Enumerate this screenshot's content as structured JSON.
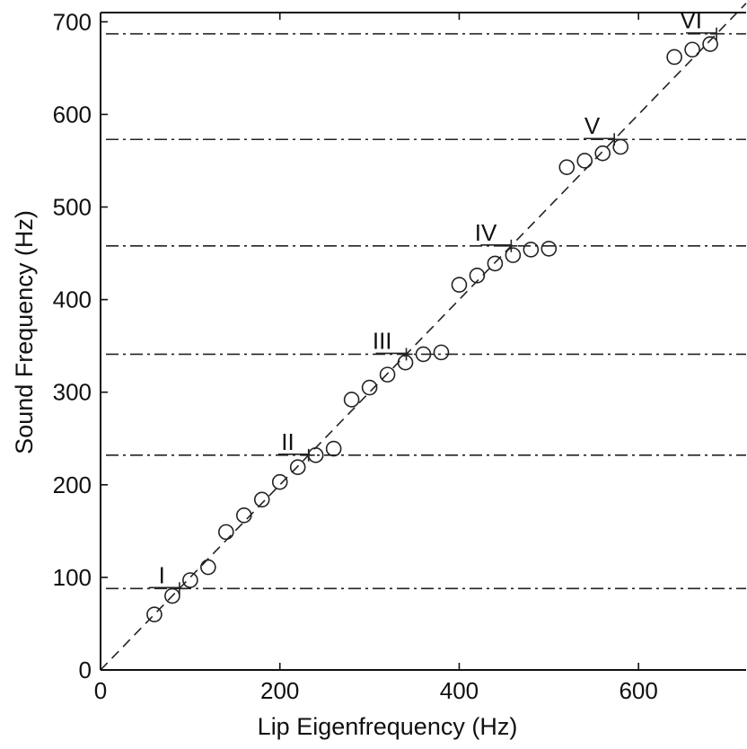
{
  "chart_data": {
    "type": "scatter",
    "title": "",
    "xlabel": "Lip Eigenfrequency (Hz)",
    "ylabel": "Sound Frequency (Hz)",
    "xlim": [
      0,
      720
    ],
    "ylim": [
      0,
      710
    ],
    "x_ticks": [
      0,
      200,
      400,
      600
    ],
    "y_ticks": [
      0,
      100,
      200,
      300,
      400,
      500,
      600,
      700
    ],
    "grid": false,
    "series": [
      {
        "marker": "circle",
        "points": [
          [
            60,
            60
          ],
          [
            80,
            80
          ],
          [
            100,
            97
          ],
          [
            120,
            111
          ],
          [
            140,
            149
          ],
          [
            160,
            167
          ],
          [
            180,
            184
          ],
          [
            200,
            203
          ],
          [
            220,
            219
          ],
          [
            240,
            232
          ],
          [
            260,
            239
          ],
          [
            280,
            292
          ],
          [
            300,
            305
          ],
          [
            320,
            319
          ],
          [
            340,
            332
          ],
          [
            360,
            341
          ],
          [
            380,
            343
          ],
          [
            400,
            416
          ],
          [
            420,
            426
          ],
          [
            440,
            439
          ],
          [
            460,
            448
          ],
          [
            480,
            454
          ],
          [
            500,
            455
          ],
          [
            520,
            543
          ],
          [
            540,
            550
          ],
          [
            560,
            558
          ],
          [
            580,
            565
          ],
          [
            640,
            662
          ],
          [
            660,
            670
          ],
          [
            680,
            676
          ]
        ]
      }
    ],
    "reference_line": {
      "style": "dashed",
      "x": [
        0,
        720
      ],
      "y": [
        0,
        720
      ]
    },
    "resonances": [
      {
        "label": "I",
        "frequency": 88
      },
      {
        "label": "II",
        "frequency": 232
      },
      {
        "label": "III",
        "frequency": 341
      },
      {
        "label": "IV",
        "frequency": 458
      },
      {
        "label": "V",
        "frequency": 573
      },
      {
        "label": "VI",
        "frequency": 687
      }
    ]
  }
}
